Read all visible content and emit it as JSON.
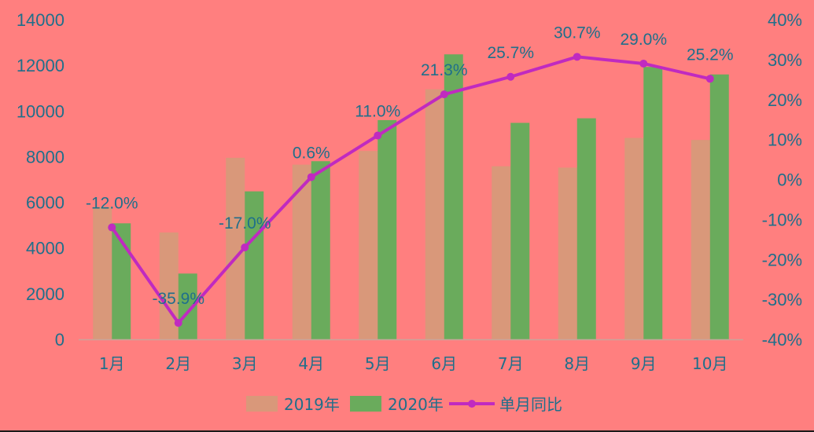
{
  "chart_data": {
    "type": "bar",
    "categories": [
      "1月",
      "2月",
      "3月",
      "4月",
      "5月",
      "6月",
      "7月",
      "8月",
      "9月",
      "10月"
    ],
    "series": [
      {
        "name": "2019年",
        "type": "bar",
        "axis": "left",
        "color": "#d9987a",
        "values": [
          5800,
          4680,
          7950,
          7650,
          8250,
          10950,
          7580,
          7520,
          8820,
          8730
        ]
      },
      {
        "name": "2020年",
        "type": "bar",
        "axis": "left",
        "color": "#6aab5c",
        "values": [
          5080,
          2880,
          6480,
          7800,
          9600,
          12480,
          9480,
          9680,
          11930,
          11600
        ]
      },
      {
        "name": "单月同比",
        "type": "line",
        "axis": "right",
        "color": "#c02ac0",
        "values": [
          -12.0,
          -35.9,
          -17.0,
          0.6,
          11.0,
          21.3,
          25.7,
          30.7,
          29.0,
          25.2
        ],
        "labels": [
          "-12.0%",
          "-35.9%",
          "-17.0%",
          "0.6%",
          "11.0%",
          "21.3%",
          "25.7%",
          "30.7%",
          "29.0%",
          "25.2%"
        ]
      }
    ],
    "y_left": {
      "range": [
        0,
        14000
      ],
      "ticks": [
        0,
        2000,
        4000,
        6000,
        8000,
        10000,
        12000,
        14000
      ],
      "tick_labels": [
        "0",
        "2000",
        "4000",
        "6000",
        "8000",
        "10000",
        "12000",
        "14000"
      ]
    },
    "y_right": {
      "range": [
        -40,
        40
      ],
      "ticks": [
        -40,
        -30,
        -20,
        -10,
        0,
        10,
        20,
        30,
        40
      ],
      "tick_labels": [
        "-40%",
        "-30%",
        "-20%",
        "-10%",
        "0%",
        "10%",
        "20%",
        "30%",
        "40%"
      ]
    },
    "grid": false,
    "legend": "bottom",
    "title": "",
    "xlabel": "",
    "ylabel": ""
  }
}
